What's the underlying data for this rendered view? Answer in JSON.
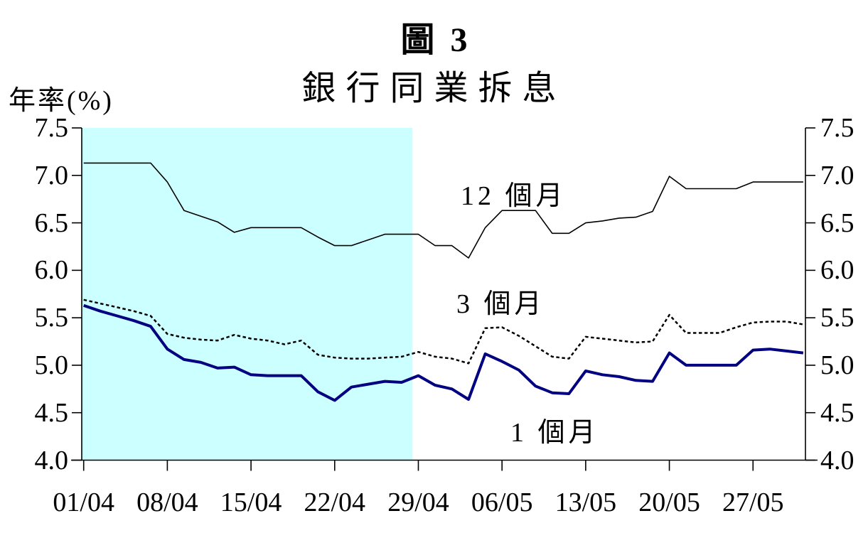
{
  "title": "圖 3",
  "subtitle": "銀行同業拆息",
  "y_axis_label": "年率(%)",
  "chart_data": {
    "type": "line",
    "title": "銀行同業拆息",
    "ylabel": "年率(%)",
    "ylim": [
      4.0,
      7.5
    ],
    "grid": false,
    "legend_position": "inline-labels",
    "y_ticks": [
      "7.5",
      "7.0",
      "6.5",
      "6.0",
      "5.5",
      "5.0",
      "4.5",
      "4.0"
    ],
    "x_tick_labels": [
      "01/04",
      "08/04",
      "15/04",
      "22/04",
      "29/04",
      "06/05",
      "13/05",
      "20/05",
      "27/05"
    ],
    "x_tick_day_indices": [
      0,
      5,
      10,
      15,
      20,
      25,
      30,
      35,
      40
    ],
    "shaded_region": {
      "color": "#ccffff",
      "start_day_index": 0,
      "end_day_index": 19.65
    },
    "series": [
      {
        "id": "12m",
        "name": "12 個月",
        "color": "#000000",
        "line_style": "solid-thin",
        "values": [
          7.13,
          7.13,
          7.13,
          7.13,
          7.13,
          6.93,
          6.63,
          6.57,
          6.51,
          6.4,
          6.45,
          6.45,
          6.45,
          6.45,
          6.35,
          6.26,
          6.26,
          6.32,
          6.38,
          6.38,
          6.38,
          6.26,
          6.26,
          6.13,
          6.45,
          6.63,
          6.63,
          6.63,
          6.39,
          6.39,
          6.5,
          6.52,
          6.55,
          6.56,
          6.62,
          6.99,
          6.86,
          6.86,
          6.86,
          6.86,
          6.93,
          6.93,
          6.93,
          6.93
        ]
      },
      {
        "id": "3m",
        "name": "3 個月",
        "color": "#000000",
        "line_style": "dotted",
        "values": [
          5.69,
          5.65,
          5.61,
          5.57,
          5.52,
          5.33,
          5.29,
          5.27,
          5.26,
          5.32,
          5.28,
          5.26,
          5.22,
          5.26,
          5.11,
          5.08,
          5.07,
          5.07,
          5.08,
          5.09,
          5.14,
          5.09,
          5.07,
          5.02,
          5.39,
          5.4,
          5.31,
          5.2,
          5.09,
          5.07,
          5.3,
          5.28,
          5.26,
          5.24,
          5.25,
          5.53,
          5.34,
          5.34,
          5.34,
          5.4,
          5.45,
          5.46,
          5.46,
          5.43
        ]
      },
      {
        "id": "1m",
        "name": "1 個月",
        "color": "#000080",
        "line_style": "solid-thick",
        "values": [
          5.63,
          5.57,
          5.52,
          5.47,
          5.41,
          5.17,
          5.06,
          5.03,
          4.97,
          4.98,
          4.9,
          4.89,
          4.89,
          4.89,
          4.72,
          4.63,
          4.77,
          4.8,
          4.83,
          4.82,
          4.89,
          4.79,
          4.75,
          4.64,
          5.12,
          5.04,
          4.95,
          4.78,
          4.71,
          4.7,
          4.94,
          4.9,
          4.88,
          4.84,
          4.83,
          5.13,
          5.0,
          5.0,
          5.0,
          5.0,
          5.16,
          5.17,
          5.15,
          5.13
        ]
      }
    ]
  }
}
